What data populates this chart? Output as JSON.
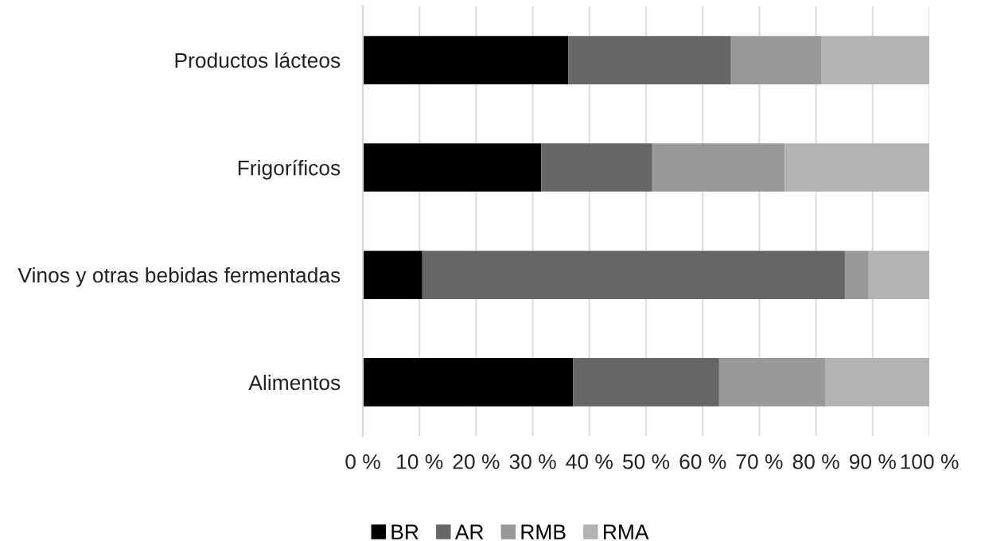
{
  "chart_data": {
    "type": "bar",
    "orientation": "horizontal",
    "stacked": true,
    "categories": [
      "Productos lácteos",
      "Frigoríficos",
      "Vinos y otras bebidas fermentadas",
      "Alimentos"
    ],
    "series": [
      {
        "name": "BR",
        "color": "#000000",
        "values": [
          36.3,
          31.5,
          10.5,
          37.1
        ]
      },
      {
        "name": "AR",
        "color": "#666666",
        "values": [
          28.7,
          19.6,
          74.6,
          25.8
        ]
      },
      {
        "name": "RMB",
        "color": "#999999",
        "values": [
          15.9,
          23.4,
          4.2,
          18.8
        ]
      },
      {
        "name": "RMA",
        "color": "#b2b2b2",
        "values": [
          19.1,
          25.5,
          10.7,
          18.3
        ]
      }
    ],
    "xlim": [
      0,
      100
    ],
    "xticks": [
      {
        "value": 0,
        "label": "0 %"
      },
      {
        "value": 10,
        "label": "10 %"
      },
      {
        "value": 20,
        "label": "20 %"
      },
      {
        "value": 30,
        "label": "30 %"
      },
      {
        "value": 40,
        "label": "40 %"
      },
      {
        "value": 50,
        "label": "50 %"
      },
      {
        "value": 60,
        "label": "60 %"
      },
      {
        "value": 70,
        "label": "70 %"
      },
      {
        "value": 80,
        "label": "80 %"
      },
      {
        "value": 90,
        "label": "90 %"
      },
      {
        "value": 100,
        "label": "100 %"
      }
    ],
    "grid": "x",
    "legend": "bottom"
  }
}
